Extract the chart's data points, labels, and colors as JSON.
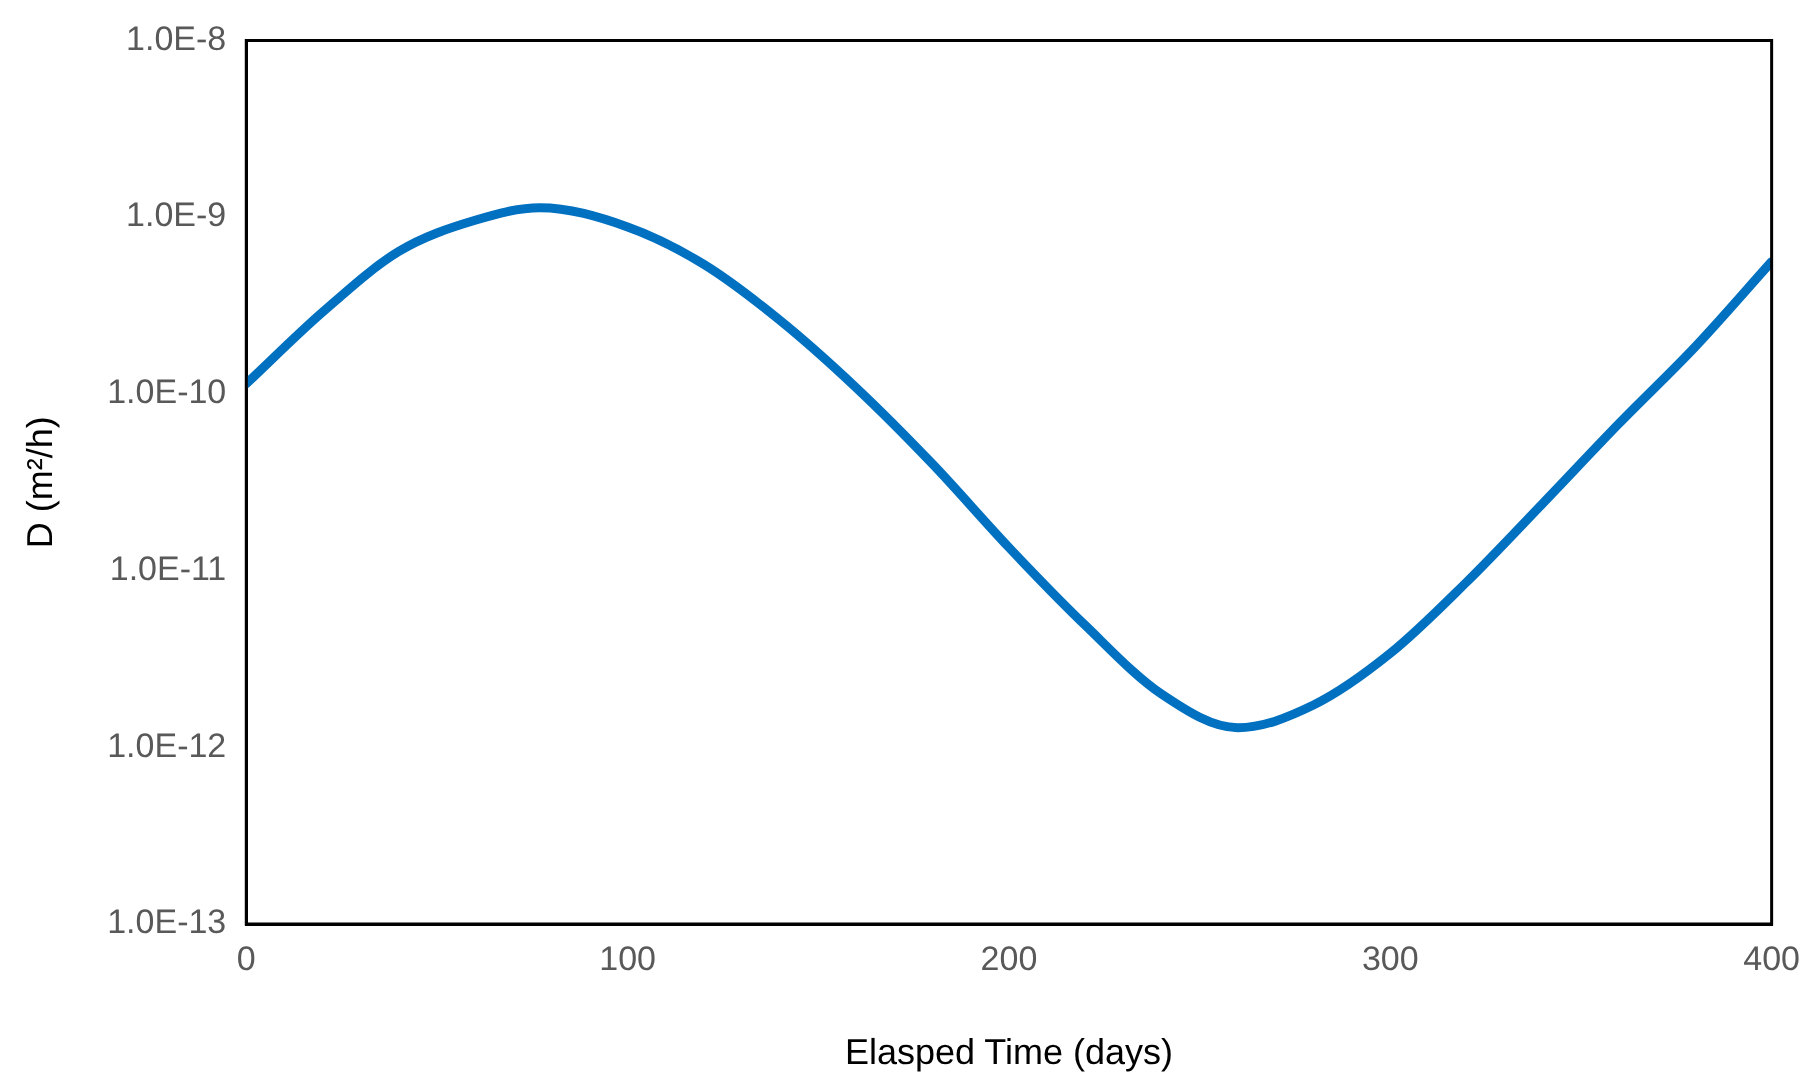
{
  "chart_data": {
    "type": "line",
    "xlabel": "Elasped Time (days)",
    "ylabel": "D (m²/h)",
    "x": [
      0,
      20,
      40,
      60,
      77,
      100,
      120,
      140,
      160,
      180,
      200,
      220,
      240,
      260,
      280,
      300,
      320,
      340,
      360,
      380,
      400
    ],
    "series": [
      {
        "color": "#0070c0",
        "values": [
          1.14e-10,
          2.9e-10,
          6.4e-10,
          9.6e-10,
          1.13e-09,
          8.8e-10,
          5.4e-10,
          2.6e-10,
          1.08e-10,
          4e-11,
          1.35e-11,
          4.9e-12,
          2e-12,
          1.29e-12,
          1.74e-12,
          3.4e-12,
          8.6e-12,
          2.4e-11,
          6.8e-11,
          1.85e-10,
          5.6e-10
        ]
      }
    ],
    "log": "y",
    "xlim": [
      0,
      400
    ],
    "xticks": [
      0,
      100,
      200,
      300,
      400
    ],
    "ylim": [
      1e-13,
      1e-08
    ],
    "yticks": [
      {
        "value": 1e-13,
        "label": "1.0E-13"
      },
      {
        "value": 1e-12,
        "label": "1.0E-12"
      },
      {
        "value": 1e-11,
        "label": "1.0E-11"
      },
      {
        "value": 1e-10,
        "label": "1.0E-10"
      },
      {
        "value": 1e-09,
        "label": "1.0E-9"
      },
      {
        "value": 1e-08,
        "label": "1.0E-8"
      }
    ],
    "grid": false,
    "legend": false,
    "marker": "none",
    "line_style": "solid"
  }
}
